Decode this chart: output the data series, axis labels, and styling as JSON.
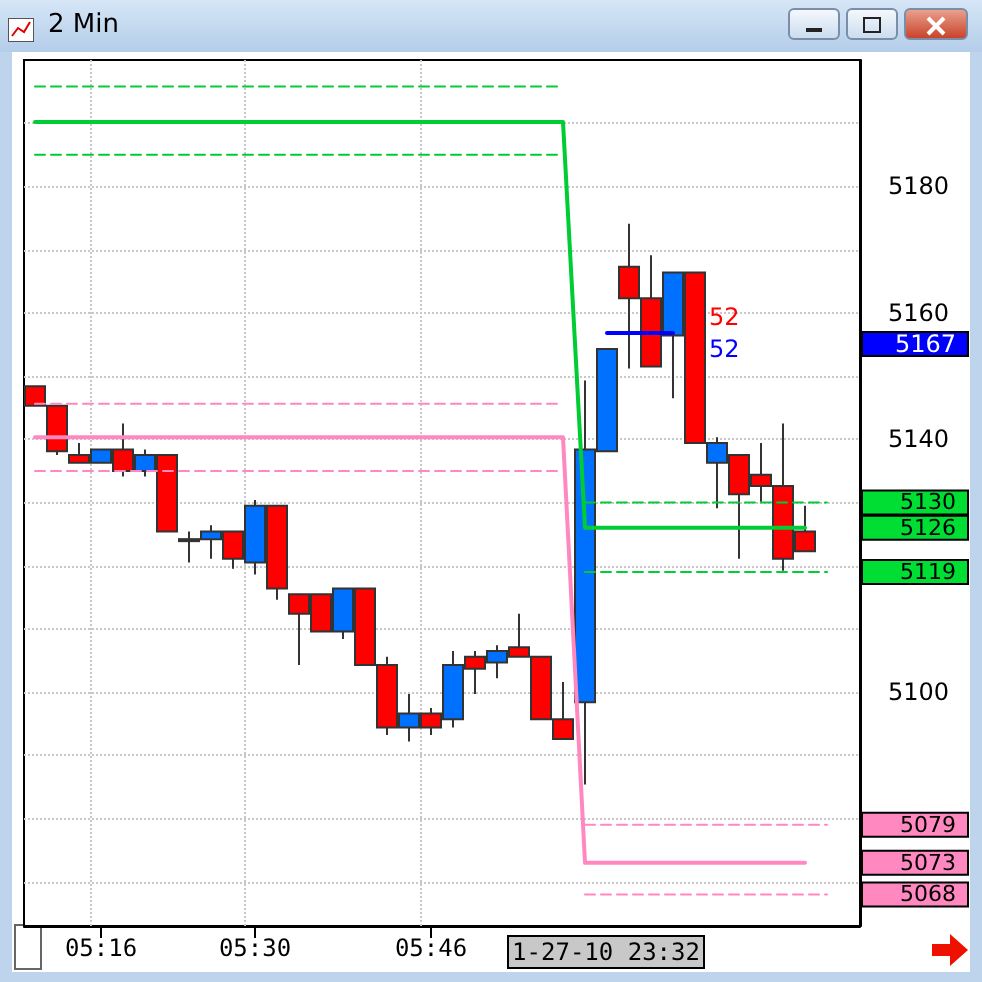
{
  "chart_data": {
    "type": "candlestick",
    "title": "2 Min",
    "categories": [
      null,
      null,
      null,
      "05:16",
      null,
      null,
      null,
      null,
      null,
      null,
      "05:30",
      null,
      null,
      null,
      null,
      null,
      null,
      null,
      "05:46",
      null,
      null,
      null,
      null,
      null,
      null,
      null,
      null,
      null,
      null,
      null,
      null,
      null,
      null,
      null,
      null,
      null,
      null,
      null
    ],
    "ylim": [
      5063,
      5200
    ],
    "yticks": [
      {
        "value": 5070,
        "label": null
      },
      {
        "value": 5080,
        "label": null
      },
      {
        "value": 5090,
        "label": null
      },
      5100,
      {
        "value": 5110,
        "label": null
      },
      {
        "value": 5120,
        "label": null
      },
      {
        "value": 5130,
        "label": null
      },
      5140,
      {
        "value": 5150,
        "label": null
      },
      5160,
      {
        "value": 5170,
        "label": null
      },
      5180,
      {
        "value": 5190,
        "label": null
      }
    ],
    "grid": true,
    "marker": "none",
    "series": [
      {
        "type": "line",
        "color": "#00cc33",
        "line_style": "dashed",
        "values": [
          5195.8,
          5195.8,
          5195.8,
          5195.8,
          5195.8,
          5195.8,
          5195.8,
          5195.8,
          5195.8,
          5195.8,
          5195.8,
          5195.8,
          5195.8,
          5195.8,
          5195.8,
          5195.8,
          5195.8,
          5195.8,
          5195.8,
          5195.8,
          5195.8,
          5195.8,
          5195.8,
          5195.8,
          5195.8,
          null,
          null,
          null,
          null,
          null,
          null,
          null,
          null,
          null,
          null,
          null,
          null,
          null
        ]
      },
      {
        "type": "line",
        "color": "#00cc33",
        "line_style": "solid",
        "values": [
          5190.2,
          5190.2,
          5190.2,
          5190.2,
          5190.2,
          5190.2,
          5190.2,
          5190.2,
          5190.2,
          5190.2,
          5190.2,
          5190.2,
          5190.2,
          5190.2,
          5190.2,
          5190.2,
          5190.2,
          5190.2,
          5190.2,
          5190.2,
          5190.2,
          5190.2,
          5190.2,
          5190.2,
          5190.2,
          5126,
          5126,
          5126,
          5126,
          5126,
          5126,
          5126,
          5126,
          5126,
          5126,
          5126,
          null,
          null
        ]
      },
      {
        "type": "line",
        "color": "#00cc33",
        "line_style": "dashed",
        "values": [
          5185,
          5185,
          5185,
          5185,
          5185,
          5185,
          5185,
          5185,
          5185,
          5185,
          5185,
          5185,
          5185,
          5185,
          5185,
          5185,
          5185,
          5185,
          5185,
          5185,
          5185,
          5185,
          5185,
          5185,
          5185,
          null,
          null,
          null,
          null,
          null,
          null,
          null,
          null,
          null,
          null,
          null,
          null,
          null
        ]
      },
      {
        "type": "line",
        "color": "#00cc33",
        "line_style": "dashed",
        "values": [
          null,
          null,
          null,
          null,
          null,
          null,
          null,
          null,
          null,
          null,
          null,
          null,
          null,
          null,
          null,
          null,
          null,
          null,
          null,
          null,
          null,
          null,
          null,
          null,
          null,
          5130,
          5130,
          5130,
          5130,
          5130,
          5130,
          5130,
          5130,
          5130,
          5130,
          5130,
          5130,
          null
        ]
      },
      {
        "type": "line",
        "color": "#00cc33",
        "line_style": "dashed",
        "values": [
          null,
          null,
          null,
          null,
          null,
          null,
          null,
          null,
          null,
          null,
          null,
          null,
          null,
          null,
          null,
          null,
          null,
          null,
          null,
          null,
          null,
          null,
          null,
          null,
          null,
          5119,
          5119,
          5119,
          5119,
          5119,
          5119,
          5119,
          5119,
          5119,
          5119,
          5119,
          5119,
          null
        ]
      },
      {
        "type": "line",
        "color": "#ff88c0",
        "line_style": "dashed",
        "values": [
          5145.6,
          5145.6,
          5145.6,
          5145.6,
          5145.6,
          5145.6,
          5145.6,
          5145.6,
          5145.6,
          5145.6,
          5145.6,
          5145.6,
          5145.6,
          5145.6,
          5145.6,
          5145.6,
          5145.6,
          5145.6,
          5145.6,
          5145.6,
          5145.6,
          5145.6,
          5145.6,
          5145.6,
          5145.6,
          null,
          null,
          null,
          null,
          null,
          null,
          null,
          null,
          null,
          null,
          null,
          null,
          null
        ]
      },
      {
        "type": "line",
        "color": "#ff88c0",
        "line_style": "solid",
        "values": [
          5140.3,
          5140.3,
          5140.3,
          5140.3,
          5140.3,
          5140.3,
          5140.3,
          5140.3,
          5140.3,
          5140.3,
          5140.3,
          5140.3,
          5140.3,
          5140.3,
          5140.3,
          5140.3,
          5140.3,
          5140.3,
          5140.3,
          5140.3,
          5140.3,
          5140.3,
          5140.3,
          5140.3,
          5140.3,
          5073,
          5073,
          5073,
          5073,
          5073,
          5073,
          5073,
          5073,
          5073,
          5073,
          5073,
          null,
          null
        ]
      },
      {
        "type": "line",
        "color": "#ff88c0",
        "line_style": "dashed",
        "values": [
          5135,
          5135,
          5135,
          5135,
          5135,
          5135,
          5135,
          5135,
          5135,
          5135,
          5135,
          5135,
          5135,
          5135,
          5135,
          5135,
          5135,
          5135,
          5135,
          5135,
          5135,
          5135,
          5135,
          5135,
          5135,
          null,
          null,
          null,
          null,
          null,
          null,
          null,
          null,
          null,
          null,
          null,
          null,
          null
        ]
      },
      {
        "type": "line",
        "color": "#ff88c0",
        "line_style": "dashed",
        "values": [
          null,
          null,
          null,
          null,
          null,
          null,
          null,
          null,
          null,
          null,
          null,
          null,
          null,
          null,
          null,
          null,
          null,
          null,
          null,
          null,
          null,
          null,
          null,
          null,
          null,
          5079,
          5079,
          5079,
          5079,
          5079,
          5079,
          5079,
          5079,
          5079,
          5079,
          5079,
          5079,
          null
        ]
      },
      {
        "type": "line",
        "color": "#ff88c0",
        "line_style": "dashed",
        "values": [
          null,
          null,
          null,
          null,
          null,
          null,
          null,
          null,
          null,
          null,
          null,
          null,
          null,
          null,
          null,
          null,
          null,
          null,
          null,
          null,
          null,
          null,
          null,
          null,
          null,
          5068,
          5068,
          5068,
          5068,
          5068,
          5068,
          5068,
          5068,
          5068,
          5068,
          5068,
          5068,
          null
        ]
      },
      {
        "type": "line",
        "color": "#0000ff",
        "line_style": "solid",
        "values": [
          null,
          null,
          null,
          null,
          null,
          null,
          null,
          null,
          null,
          null,
          null,
          null,
          null,
          null,
          null,
          null,
          null,
          null,
          null,
          null,
          null,
          null,
          null,
          null,
          null,
          null,
          5156.8,
          5156.8,
          5156.8,
          5156.8,
          null,
          null,
          null,
          null,
          null,
          null,
          null,
          null
        ]
      },
      {
        "ohlc": [
          [
            5148.4,
            5148.4,
            5145.3,
            5145.3
          ],
          [
            5145.3,
            5145.3,
            5137.5,
            5138.1
          ],
          [
            5137.5,
            5139.4,
            5136.3,
            5136.3
          ],
          [
            5136.3,
            5138.4,
            5136.3,
            5138.4
          ],
          [
            5138.4,
            5142.5,
            5134.1,
            5135
          ],
          [
            5135,
            5138.4,
            5134.1,
            5137.5
          ],
          [
            5137.5,
            5137.5,
            5125.4,
            5125.4
          ],
          [
            5124.2,
            5125.4,
            5120.5,
            5124.2
          ],
          [
            5124.2,
            5126.4,
            5121.1,
            5125.4
          ],
          [
            5125.4,
            5125.4,
            5119.5,
            5121.1
          ],
          [
            5120.5,
            5130.4,
            5118.6,
            5129.5
          ],
          [
            5129.5,
            5129.5,
            5114.6,
            5116.4
          ],
          [
            5115.5,
            5115.5,
            5104.3,
            5112.4
          ],
          [
            5115.5,
            5115.5,
            5109.6,
            5109.6
          ],
          [
            5109.6,
            5116.4,
            5108.4,
            5116.4
          ],
          [
            5116.4,
            5116.4,
            5104.3,
            5104.3
          ],
          [
            5104.3,
            5105.6,
            5093.2,
            5094.4
          ],
          [
            5094.4,
            5099.7,
            5092.2,
            5096.6
          ],
          [
            5096.6,
            5097.5,
            5093.2,
            5094.4
          ],
          [
            5095.7,
            5106.5,
            5094.4,
            5104.3
          ],
          [
            5105.6,
            5106.5,
            5099.7,
            5103.7
          ],
          [
            5104.7,
            5107.4,
            5102.2,
            5106.5
          ],
          [
            5107.1,
            5112.4,
            5105.6,
            5105.6
          ],
          [
            5105.6,
            5105.6,
            5095.7,
            5095.7
          ],
          [
            5095.7,
            5101.6,
            5092.6,
            5092.6
          ],
          [
            5098.4,
            5149.3,
            5085.4,
            5138.4
          ],
          [
            5138.1,
            5154.3,
            5138.1,
            5154.3
          ],
          [
            5167.3,
            5174.1,
            5151.2,
            5162.3
          ],
          [
            5162.3,
            5169.1,
            5151.5,
            5151.5
          ],
          [
            5156.4,
            5166.4,
            5146.5,
            5166.4
          ],
          [
            5166.4,
            5166.4,
            5139.4,
            5139.4
          ],
          [
            5136.3,
            5140.3,
            5129.1,
            5139.4
          ],
          [
            5137.5,
            5137.5,
            5121.1,
            5131.3
          ],
          [
            5134.4,
            5139.4,
            5130.1,
            5132.6
          ],
          [
            5132.6,
            5142.5,
            5119.2,
            5121.1
          ],
          [
            5125.4,
            5129.5,
            5122.3,
            5122.3
          ],
          null,
          null
        ],
        "colors": [
          "#ff0000",
          "#ff0000",
          "#ff0000",
          "#0070ff",
          "#ff0000",
          "#0070ff",
          "#ff0000",
          "#ff0000",
          "#0070ff",
          "#ff0000",
          "#0070ff",
          "#ff0000",
          "#ff0000",
          "#ff0000",
          "#0070ff",
          "#ff0000",
          "#ff0000",
          "#0070ff",
          "#ff0000",
          "#0070ff",
          "#ff0000",
          "#0070ff",
          "#ff0000",
          "#ff0000",
          "#ff0000",
          "#0070ff",
          "#0070ff",
          "#ff0000",
          "#ff0000",
          "#0070ff",
          "#ff0000",
          "#0070ff",
          "#ff0000",
          "#ff0000",
          "#ff0000",
          "#ff0000",
          null,
          null
        ]
      }
    ],
    "annotations": [
      "5126",
      "5130",
      "5119",
      "5073",
      "5079",
      "5068",
      "5167",
      "52",
      "52",
      "1-27-10 23:32"
    ]
  }
}
